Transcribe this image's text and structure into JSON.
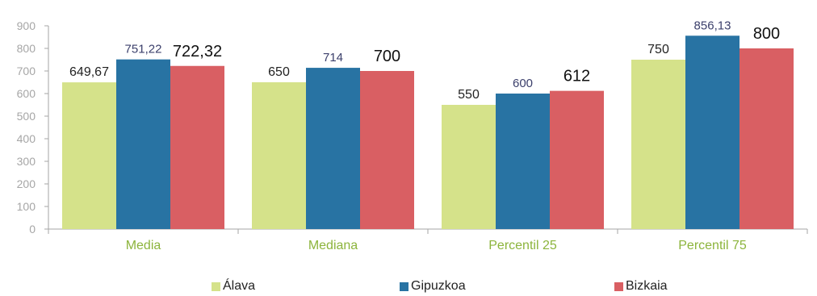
{
  "chart_data": {
    "type": "bar",
    "categories": [
      "Media",
      "Mediana",
      "Percentil 25",
      "Percentil 75"
    ],
    "series": [
      {
        "name": "Álava",
        "values": [
          649.67,
          650,
          550,
          750
        ],
        "labels": [
          "649,67",
          "650",
          "550",
          "750"
        ],
        "color": "#d5e28a"
      },
      {
        "name": "Gipuzkoa",
        "values": [
          751.22,
          714,
          600,
          856.13
        ],
        "labels": [
          "751,22",
          "714",
          "600",
          "856,13"
        ],
        "color": "#2873a3"
      },
      {
        "name": "Bizkaia",
        "values": [
          722.32,
          700,
          612,
          800
        ],
        "labels": [
          "722,32",
          "700",
          "612",
          "800"
        ],
        "color": "#d95f63"
      }
    ],
    "ylim": [
      0,
      900
    ],
    "yticks": [
      0,
      100,
      200,
      300,
      400,
      500,
      600,
      700,
      800,
      900
    ],
    "grid": false,
    "legend_position": "bottom"
  }
}
